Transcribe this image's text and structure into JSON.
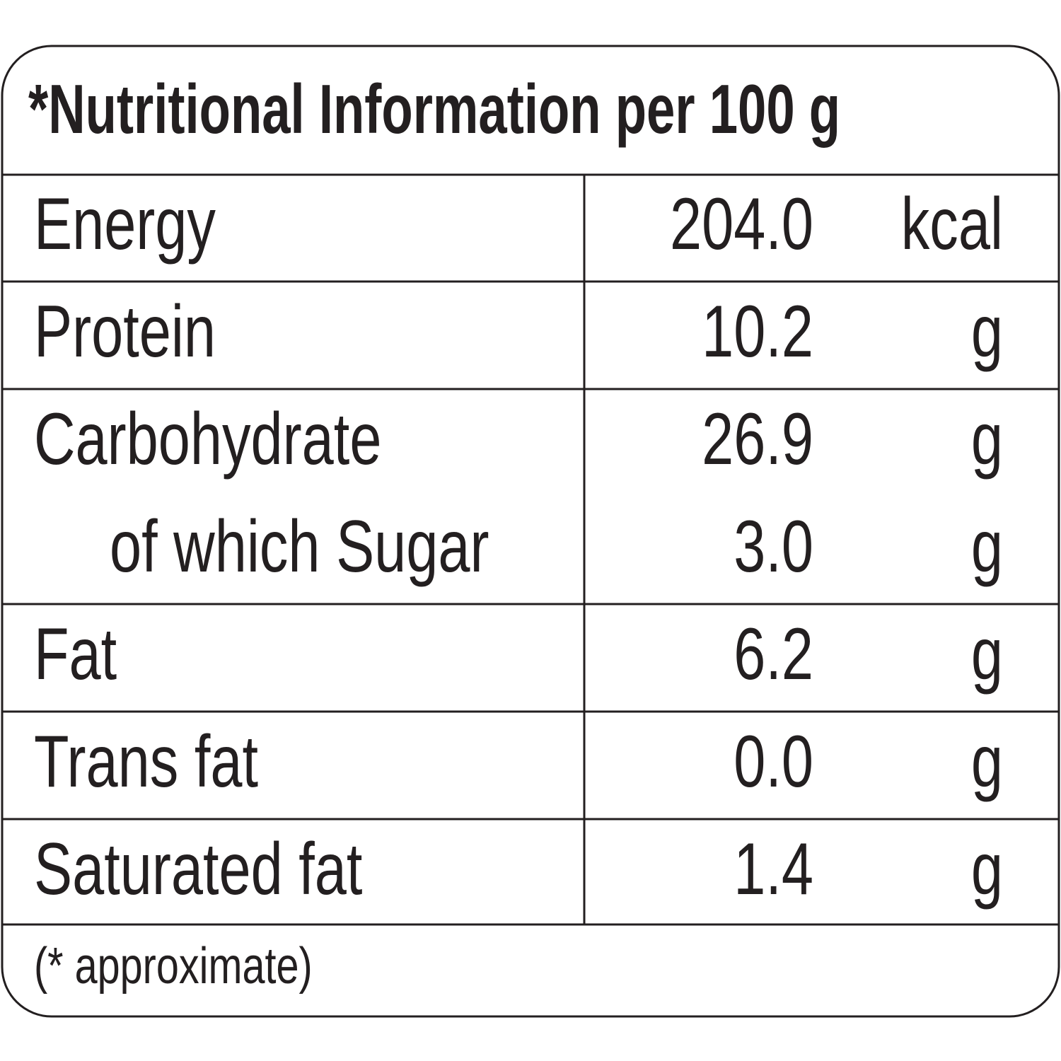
{
  "title": "*Nutritional Information per 100 g",
  "rows": [
    {
      "label": "Energy",
      "value": "204.0",
      "unit": "kcal"
    },
    {
      "label": "Protein",
      "value": "10.2",
      "unit": "g"
    },
    {
      "label": "Carbohydrate",
      "value": "26.9",
      "unit": "g",
      "sub_rows": [
        {
          "label": "of which Sugar",
          "value": "3.0",
          "unit": "g"
        }
      ]
    },
    {
      "label": "Fat",
      "value": "6.2",
      "unit": "g"
    },
    {
      "label": "Trans fat",
      "value": "0.0",
      "unit": "g"
    },
    {
      "label": "Saturated fat",
      "value": "1.4",
      "unit": "g"
    }
  ],
  "footnote": "(* approximate)"
}
